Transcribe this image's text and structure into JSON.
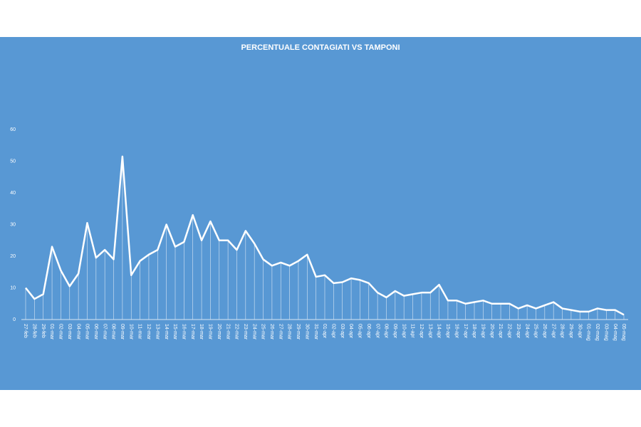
{
  "chart_data": {
    "type": "line",
    "title": "PERCENTUALE  CONTAGIATI  VS TAMPONI",
    "categories": [
      "27-feb",
      "28-feb",
      "29-feb",
      "01-mar",
      "02-mar",
      "03-mar",
      "04-mar",
      "05-mar",
      "06-mar",
      "07-mar",
      "08-mar",
      "09-mar",
      "10-mar",
      "11-mar",
      "12-mar",
      "13-mar",
      "14-mar",
      "15-mar",
      "16-mar",
      "17-mar",
      "18-mar",
      "19-mar",
      "20-mar",
      "21-mar",
      "22-mar",
      "23-mar",
      "24-mar",
      "25-mar",
      "26-mar",
      "27-mar",
      "28-mar",
      "29-mar",
      "30-mar",
      "31-mar",
      "01-apr",
      "02-apr",
      "03-apr",
      "04-apr",
      "05-apr",
      "06-apr",
      "07-apr",
      "08-apr",
      "09-apr",
      "10-apr",
      "11-apr",
      "12-apr",
      "13-apr",
      "14-apr",
      "15-apr",
      "16-apr",
      "17-apr",
      "18-apr",
      "19-apr",
      "20-apr",
      "21-apr",
      "22-apr",
      "23-apr",
      "24-apr",
      "25-apr",
      "26-apr",
      "27-apr",
      "28-apr",
      "29-apr",
      "30-apr",
      "01-mag",
      "02-mag",
      "03-mag",
      "04-mag",
      "05-mag"
    ],
    "values": [
      10,
      6.5,
      8,
      23,
      15.5,
      10.5,
      14.5,
      30.5,
      19.5,
      22,
      19,
      51.5,
      14,
      18.5,
      20.5,
      22,
      30,
      23,
      24.5,
      33,
      25,
      31,
      25,
      25,
      22,
      28,
      24,
      19,
      17,
      18,
      17,
      18.5,
      20.5,
      13.5,
      14,
      11.5,
      11.8,
      13,
      12.5,
      11.5,
      8.5,
      7,
      9,
      7.5,
      8,
      8.5,
      8.5,
      11,
      6,
      6,
      5,
      5.5,
      6,
      5,
      5,
      5,
      3.5,
      4.5,
      3.5,
      4.5,
      5.5,
      3.5,
      3,
      2.5,
      2.5,
      3.5,
      3,
      3,
      1.5
    ],
    "color": "#ffffff",
    "ylim": [
      0,
      60
    ],
    "yticks": [
      0,
      10,
      20,
      30,
      40,
      50,
      60
    ]
  }
}
